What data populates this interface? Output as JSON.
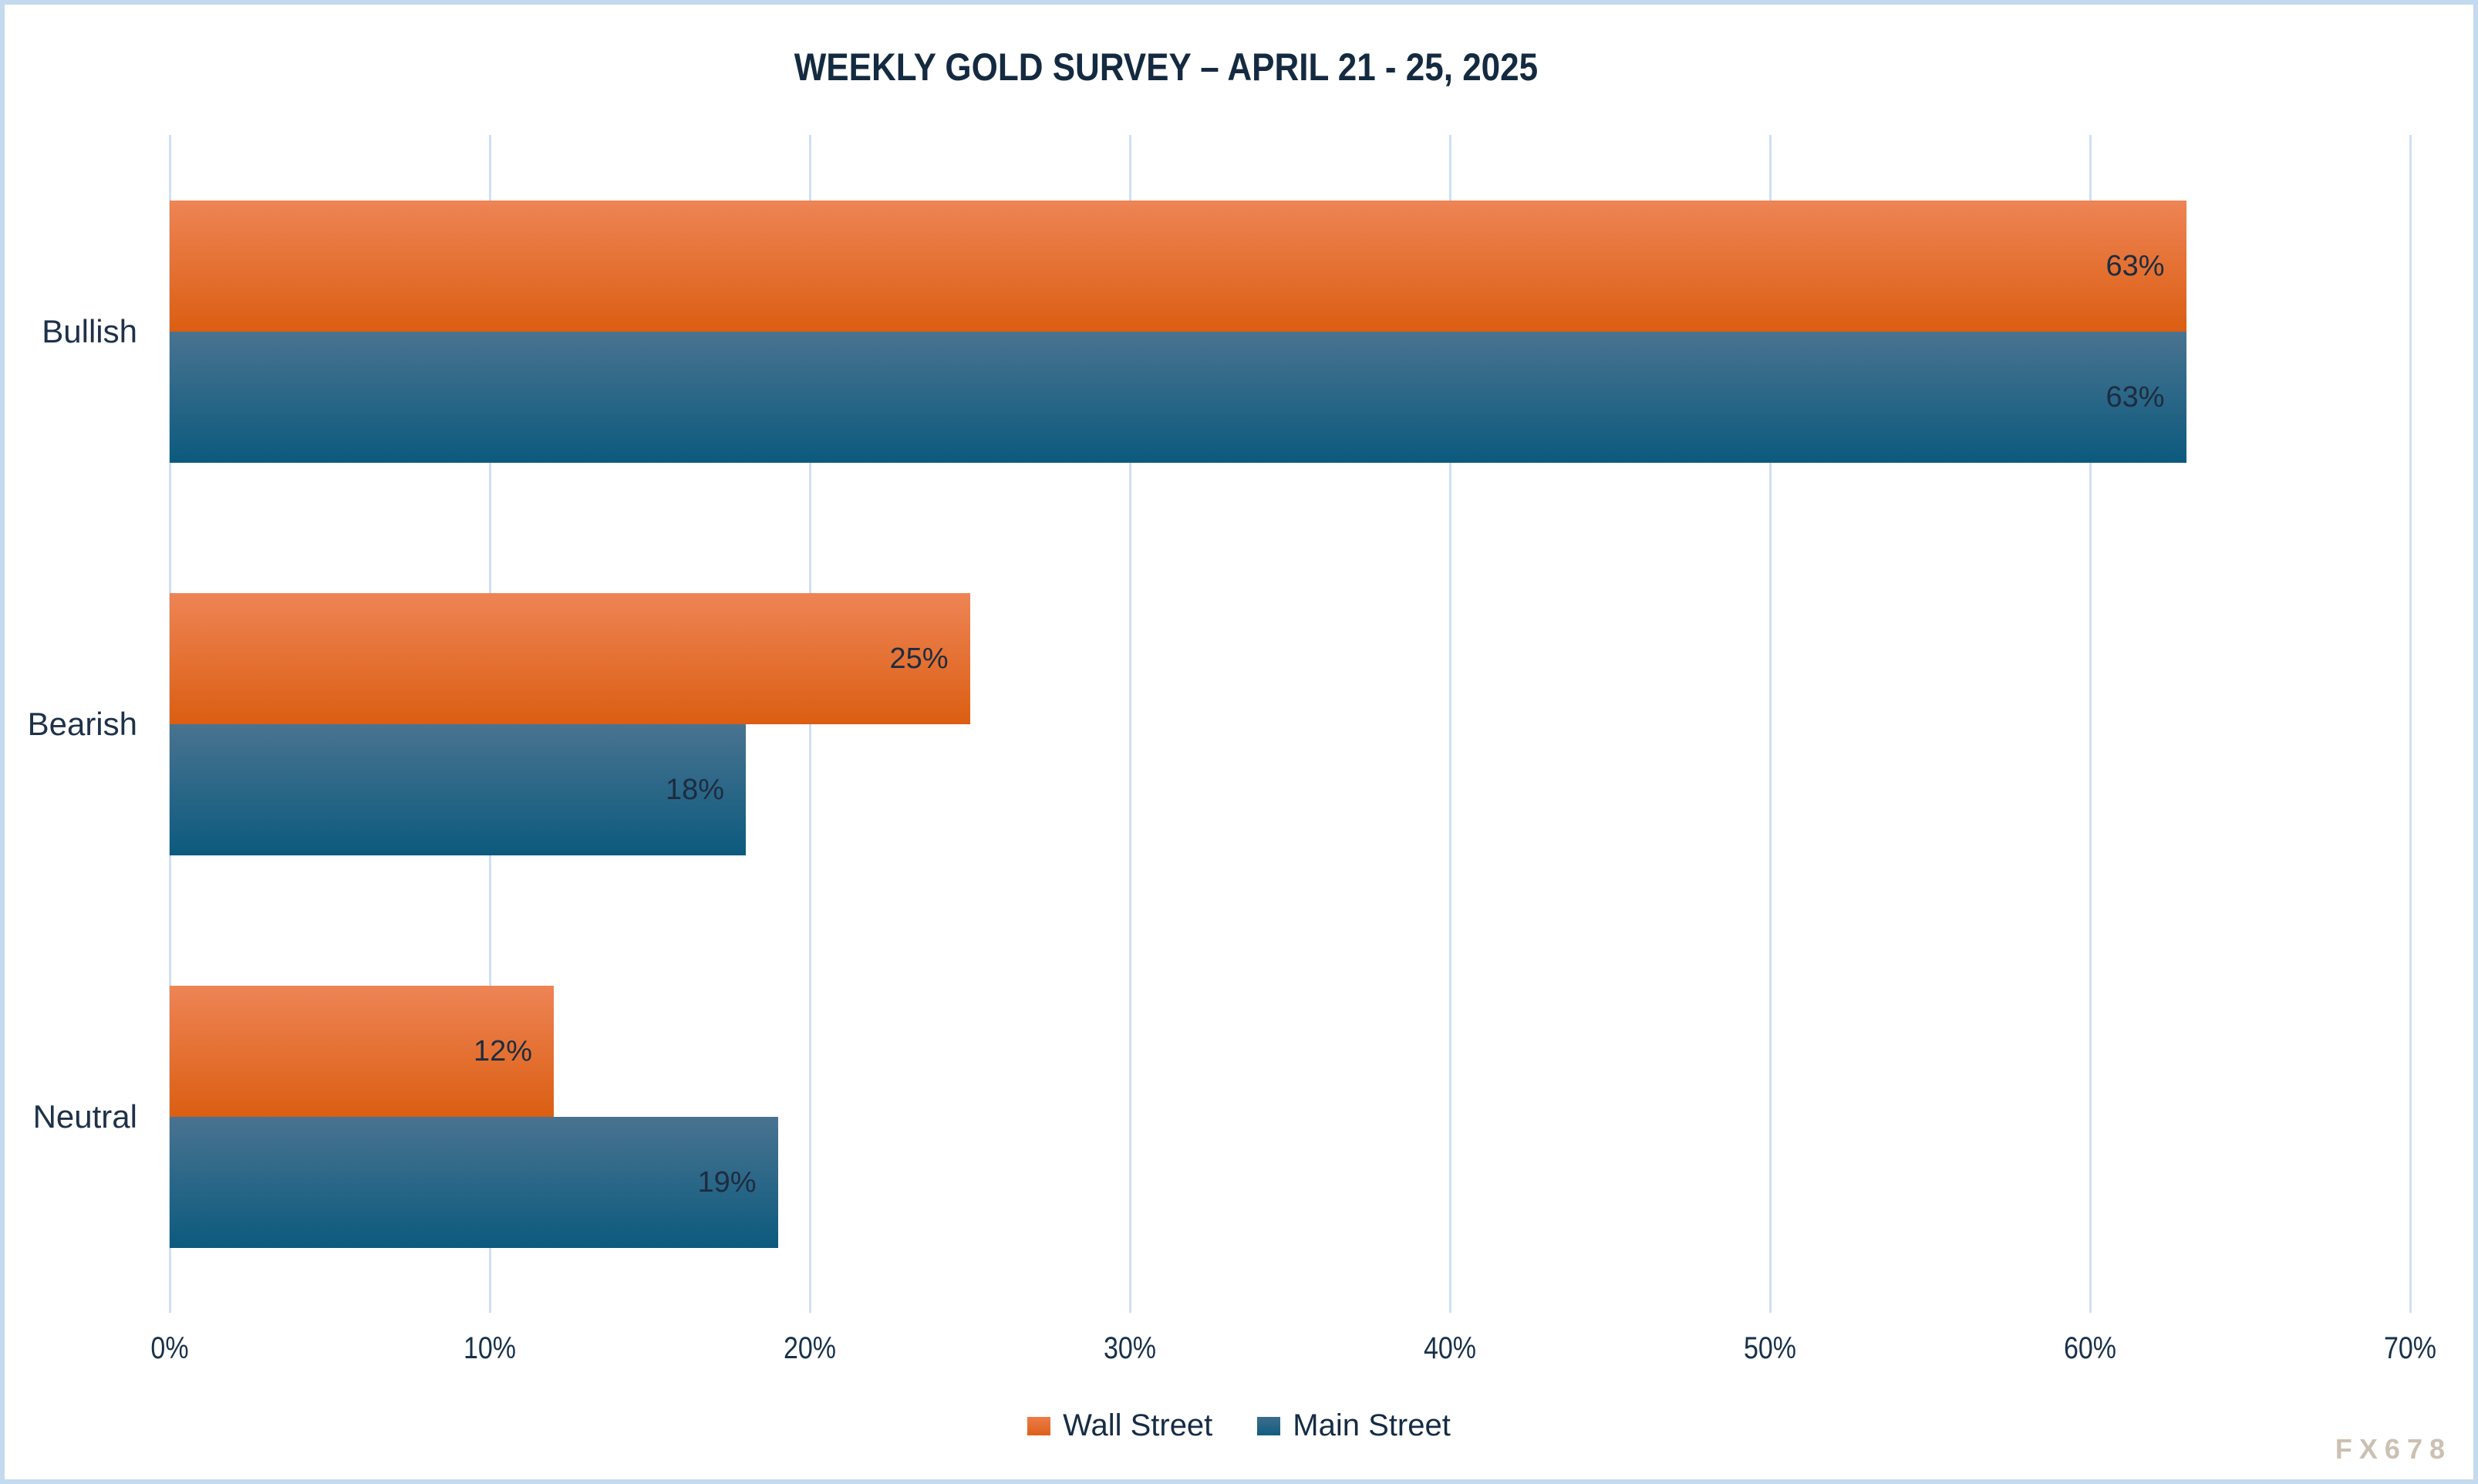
{
  "title": "WEEKLY GOLD SURVEY – APRIL 21 - 25, 2025",
  "watermark": "FX678",
  "colors": {
    "title_text": "#142a40",
    "label_text": "#1e3148",
    "grid_line": "#cfe0f2",
    "frame_border": "#c3daef",
    "wall_street_gradient_top": "#ee8455",
    "wall_street_gradient_bottom": "#db5e12",
    "main_street_gradient_top": "#497390",
    "main_street_gradient_bottom": "#0c5a7e"
  },
  "chart_data": {
    "type": "bar",
    "orientation": "horizontal",
    "title": "WEEKLY GOLD SURVEY – APRIL 21 - 25, 2025",
    "categories": [
      "Bullish",
      "Bearish",
      "Neutral"
    ],
    "series": [
      {
        "name": "Wall Street",
        "key": "wall-street",
        "values": [
          63,
          25,
          12
        ],
        "labels": [
          "63%",
          "25%",
          "12%"
        ]
      },
      {
        "name": "Main Street",
        "key": "main-street",
        "values": [
          63,
          18,
          19
        ],
        "labels": [
          "63%",
          "18%",
          "19%"
        ]
      }
    ],
    "xlabel": "",
    "ylabel": "",
    "xlim": [
      0,
      70
    ],
    "x_ticks": [
      "0%",
      "10%",
      "20%",
      "30%",
      "40%",
      "50%",
      "60%",
      "70%"
    ],
    "x_tick_values": [
      0,
      10,
      20,
      30,
      40,
      50,
      60,
      70
    ],
    "grid": true,
    "legend_position": "bottom",
    "value_labels_inside_bars": true
  },
  "legend": {
    "items": [
      {
        "label": "Wall Street",
        "key": "wall-street"
      },
      {
        "label": "Main Street",
        "key": "main-street"
      }
    ]
  }
}
